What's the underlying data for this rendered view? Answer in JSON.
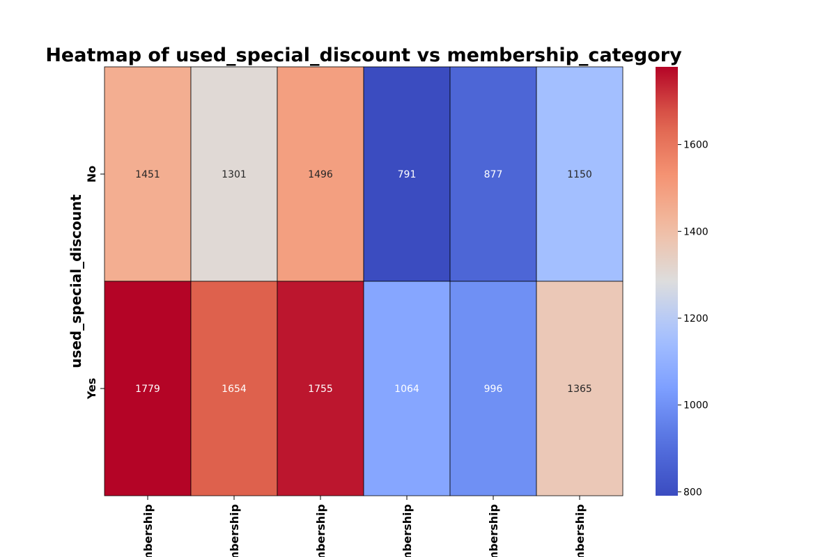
{
  "chart_data": {
    "type": "heatmap",
    "title": "Heatmap of used_special_discount vs membership_category",
    "ylabel": "used_special_discount",
    "xlabel": "",
    "rows": [
      "No",
      "Yes"
    ],
    "columns": [
      "mbership",
      "mbership",
      "mbership",
      "mbership",
      "mbership",
      "mbership"
    ],
    "values": [
      [
        1451,
        1301,
        1496,
        791,
        877,
        1150
      ],
      [
        1779,
        1654,
        1755,
        1064,
        996,
        1365
      ]
    ],
    "colormap": "coolwarm",
    "colorbar": {
      "range": [
        791,
        1779
      ],
      "ticks": [
        800,
        1000,
        1200,
        1400,
        1600
      ]
    },
    "cell_borders": true,
    "colors": {
      "low": "#3b4cc0",
      "mid": "#dddddd",
      "high": "#b40426"
    }
  }
}
